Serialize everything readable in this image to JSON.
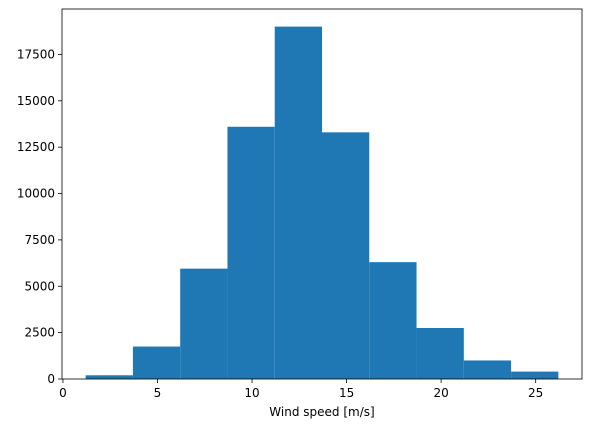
{
  "chart_data": {
    "type": "histogram",
    "xlabel": "Wind speed [m/s]",
    "bins": [
      1.2,
      3.7,
      6.2,
      8.7,
      11.2,
      13.7,
      16.2,
      18.7,
      21.2,
      23.7,
      26.2
    ],
    "counts": [
      200,
      1750,
      5950,
      13600,
      19000,
      13300,
      6300,
      2750,
      1000,
      400
    ],
    "color": "#1f77b4",
    "xlim": [
      -0.05,
      27.45
    ],
    "xticks": [
      0,
      5,
      10,
      15,
      20,
      25
    ],
    "ylim": [
      0,
      19950
    ],
    "yticks": [
      0,
      2500,
      5000,
      7500,
      10000,
      12500,
      15000,
      17500
    ]
  }
}
